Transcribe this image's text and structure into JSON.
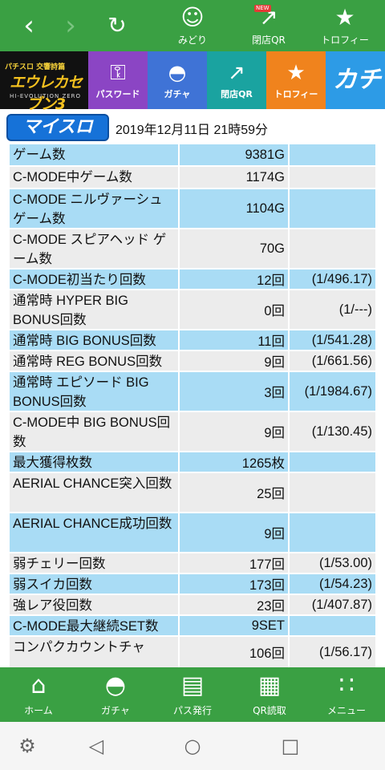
{
  "topbar": {
    "midori_label": "みどり",
    "closeqr_label": "閉店QR",
    "trophy_label": "トロフィー",
    "new_badge": "NEW"
  },
  "tiles": {
    "logo_top": "パチスロ 交響詩篇",
    "logo_main": "エウレカセブン3",
    "logo_sub": "HI-EVOLUTION ZERO",
    "password": "パスワード",
    "gacha": "ガチャ",
    "closeqr": "閉店QR",
    "trophy": "トロフィー",
    "kachinavi": "カチナビ"
  },
  "header": {
    "brand": "マイスロ",
    "timestamp": "2019年12月11日 21時59分"
  },
  "rows": [
    {
      "name": "ゲーム数",
      "value": "9381G",
      "rate": "",
      "style": "blue"
    },
    {
      "name": "C-MODE中ゲーム数",
      "value": "1174G",
      "rate": "",
      "style": "gray"
    },
    {
      "name": "C-MODE ニルヴァーシュ ゲーム数",
      "value": "1104G",
      "rate": "",
      "style": "blue"
    },
    {
      "name": "C-MODE スピアヘッド ゲーム数",
      "value": "70G",
      "rate": "",
      "style": "gray"
    },
    {
      "name": "C-MODE初当たり回数",
      "value": "12回",
      "rate": "(1/496.17)",
      "style": "blue"
    },
    {
      "name": "通常時 HYPER BIG BONUS回数",
      "value": "0回",
      "rate": "(1/---)",
      "style": "gray"
    },
    {
      "name": "通常時 BIG BONUS回数",
      "value": "11回",
      "rate": "(1/541.28)",
      "style": "blue"
    },
    {
      "name": "通常時 REG BONUS回数",
      "value": "9回",
      "rate": "(1/661.56)",
      "style": "gray"
    },
    {
      "name": "通常時 エピソード BIG BONUS回数",
      "value": "3回",
      "rate": "(1/1984.67)",
      "style": "blue"
    },
    {
      "name": "C-MODE中 BIG BONUS回数",
      "value": "9回",
      "rate": "(1/130.45)",
      "style": "gray"
    },
    {
      "name": "最大獲得枚数",
      "value": "1265枚",
      "rate": "",
      "style": "blue"
    },
    {
      "name": "AERIAL CHANCE突入回数",
      "value": "25回",
      "rate": "",
      "style": "gray"
    },
    {
      "name": "AERIAL CHANCE成功回数",
      "value": "9回",
      "rate": "",
      "style": "blue"
    },
    {
      "name": "弱チェリー回数",
      "value": "177回",
      "rate": "(1/53.00)",
      "style": "gray"
    },
    {
      "name": "弱スイカ回数",
      "value": "173回",
      "rate": "(1/54.23)",
      "style": "blue"
    },
    {
      "name": "強レア役回数",
      "value": "23回",
      "rate": "(1/407.87)",
      "style": "gray"
    },
    {
      "name": "C-MODE最大継続SET数",
      "value": "9SET",
      "rate": "",
      "style": "blue"
    },
    {
      "name": "コンパクカウントチャ",
      "value": "106回",
      "rate": "(1/56.17)",
      "style": "gray"
    }
  ],
  "bottomnav": {
    "home": "ホーム",
    "gacha": "ガチャ",
    "pass": "パス発行",
    "qr": "QR読取",
    "menu": "メニュー"
  },
  "colors": {
    "green": "#3aa043",
    "row_blue": "#a9dcf5",
    "row_gray": "#ececec"
  }
}
